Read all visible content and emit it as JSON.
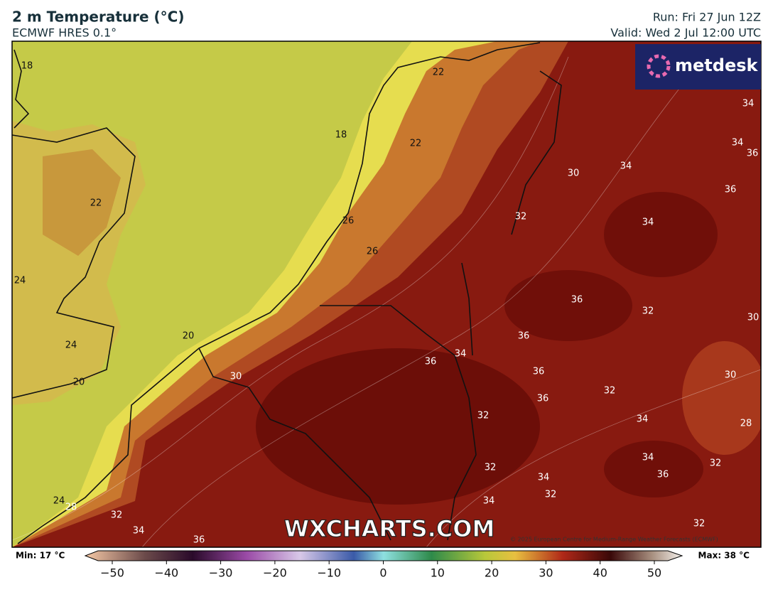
{
  "header": {
    "title": "2 m Temperature (°C)",
    "subtitle": "ECMWF HRES 0.1°",
    "run": "Run: Fri 27 Jun 12Z",
    "valid": "Valid: Wed 2 Jul 12:00 UTC"
  },
  "logo": "metdesk",
  "watermark": "WXCHARTS.COM",
  "copyright": "© 2025 European Centre for Medium-Range Weather Forecasts (ECMWF)",
  "map": {
    "contour_labels": [
      18,
      22,
      18,
      22,
      34,
      34,
      36,
      30,
      34,
      36,
      22,
      32,
      34,
      26,
      26,
      24,
      36,
      32,
      30,
      36,
      20,
      24,
      34,
      36,
      36,
      30,
      20,
      32,
      30,
      36,
      32,
      34,
      28,
      34,
      32,
      36,
      32,
      34,
      32,
      34,
      24,
      28,
      32,
      34,
      36,
      32
    ]
  },
  "colorbar": {
    "min_label": "Min: 17 °C",
    "max_label": "Max: 38 °C",
    "ticks": [
      {
        "value": -50,
        "label": "−50"
      },
      {
        "value": -40,
        "label": "−40"
      },
      {
        "value": -30,
        "label": "−30"
      },
      {
        "value": -20,
        "label": "−20"
      },
      {
        "value": -10,
        "label": "−10"
      },
      0,
      10,
      20,
      30,
      40,
      50
    ]
  }
}
